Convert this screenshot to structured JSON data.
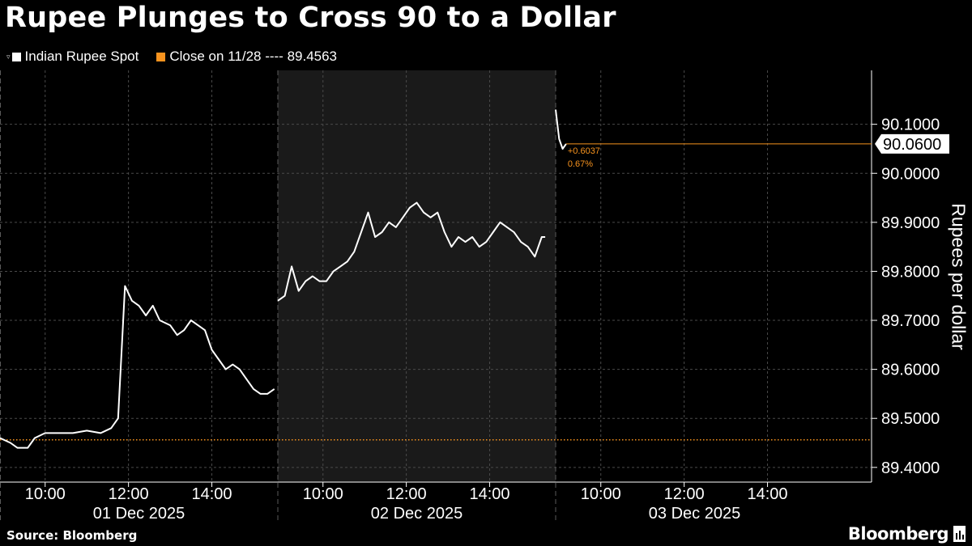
{
  "chart_data": {
    "type": "line",
    "title": "Rupee Plunges to Cross 90 to a Dollar",
    "ylabel": "Rupees per dollar",
    "ylim": [
      89.37,
      90.21
    ],
    "y_ticks": [
      "89.4000",
      "89.5000",
      "89.6000",
      "89.7000",
      "89.8000",
      "89.9000",
      "90.0000",
      "90.1000"
    ],
    "y_tick_values": [
      89.4,
      89.5,
      89.6,
      89.7,
      89.8,
      89.9,
      90.0,
      90.1
    ],
    "grid": true,
    "legend_position": "top-left",
    "sessions": [
      {
        "date": "01 Dec 2025",
        "time_ticks": [
          "10:00",
          "12:00",
          "14:00"
        ],
        "shaded": false
      },
      {
        "date": "02 Dec 2025",
        "time_ticks": [
          "10:00",
          "12:00",
          "14:00"
        ],
        "shaded": true
      },
      {
        "date": "03 Dec 2025",
        "time_ticks": [
          "10:00",
          "12:00",
          "14:00"
        ],
        "shaded": false
      }
    ],
    "series": [
      {
        "name": "Indian Rupee Spot",
        "color": "#ffffff",
        "segments": [
          [
            [
              "08:55",
              89.46
            ],
            [
              "09:10",
              89.45
            ],
            [
              "09:20",
              89.44
            ],
            [
              "09:35",
              89.44
            ],
            [
              "09:45",
              89.46
            ],
            [
              "10:00",
              89.47
            ],
            [
              "10:20",
              89.47
            ],
            [
              "10:40",
              89.47
            ],
            [
              "11:00",
              89.475
            ],
            [
              "11:20",
              89.47
            ],
            [
              "11:35",
              89.48
            ],
            [
              "11:45",
              89.5
            ],
            [
              "11:55",
              89.77
            ],
            [
              "12:05",
              89.74
            ],
            [
              "12:15",
              89.73
            ],
            [
              "12:25",
              89.71
            ],
            [
              "12:35",
              89.73
            ],
            [
              "12:45",
              89.7
            ],
            [
              "13:00",
              89.69
            ],
            [
              "13:10",
              89.67
            ],
            [
              "13:20",
              89.68
            ],
            [
              "13:30",
              89.7
            ],
            [
              "13:40",
              89.69
            ],
            [
              "13:50",
              89.68
            ],
            [
              "14:00",
              89.64
            ],
            [
              "14:10",
              89.62
            ],
            [
              "14:20",
              89.6
            ],
            [
              "14:30",
              89.61
            ],
            [
              "14:40",
              89.6
            ],
            [
              "14:50",
              89.58
            ],
            [
              "15:00",
              89.56
            ],
            [
              "15:10",
              89.55
            ],
            [
              "15:20",
              89.55
            ],
            [
              "15:30",
              89.56
            ]
          ],
          [
            [
              "08:55",
              89.74
            ],
            [
              "09:05",
              89.75
            ],
            [
              "09:15",
              89.81
            ],
            [
              "09:25",
              89.76
            ],
            [
              "09:35",
              89.78
            ],
            [
              "09:45",
              89.79
            ],
            [
              "09:55",
              89.78
            ],
            [
              "10:05",
              89.78
            ],
            [
              "10:15",
              89.8
            ],
            [
              "10:25",
              89.81
            ],
            [
              "10:35",
              89.82
            ],
            [
              "10:45",
              89.84
            ],
            [
              "10:55",
              89.88
            ],
            [
              "11:05",
              89.92
            ],
            [
              "11:15",
              89.87
            ],
            [
              "11:25",
              89.88
            ],
            [
              "11:35",
              89.9
            ],
            [
              "11:45",
              89.89
            ],
            [
              "11:55",
              89.91
            ],
            [
              "12:05",
              89.93
            ],
            [
              "12:15",
              89.94
            ],
            [
              "12:25",
              89.92
            ],
            [
              "12:35",
              89.91
            ],
            [
              "12:45",
              89.92
            ],
            [
              "12:55",
              89.88
            ],
            [
              "13:05",
              89.85
            ],
            [
              "13:15",
              89.87
            ],
            [
              "13:25",
              89.86
            ],
            [
              "13:35",
              89.87
            ],
            [
              "13:45",
              89.85
            ],
            [
              "13:55",
              89.86
            ],
            [
              "14:05",
              89.88
            ],
            [
              "14:15",
              89.9
            ],
            [
              "14:25",
              89.89
            ],
            [
              "14:35",
              89.88
            ],
            [
              "14:45",
              89.86
            ],
            [
              "14:55",
              89.85
            ],
            [
              "15:05",
              89.83
            ],
            [
              "15:15",
              89.87
            ],
            [
              "15:20",
              89.87
            ]
          ],
          [
            [
              "08:55",
              90.13
            ],
            [
              "09:00",
              90.07
            ],
            [
              "09:05",
              90.05
            ],
            [
              "09:10",
              90.06
            ]
          ]
        ]
      },
      {
        "name": "Close on 11/28 ---- 89.4563",
        "color": "#f7931e",
        "value": 89.4563,
        "style": "dotted"
      }
    ],
    "last_value": {
      "label": "90.0600",
      "value": 90.06,
      "change": "+0.6037",
      "change_pct": "0.67%"
    }
  },
  "footer": {
    "source": "Source: Bloomberg",
    "brand": "Bloomberg"
  }
}
